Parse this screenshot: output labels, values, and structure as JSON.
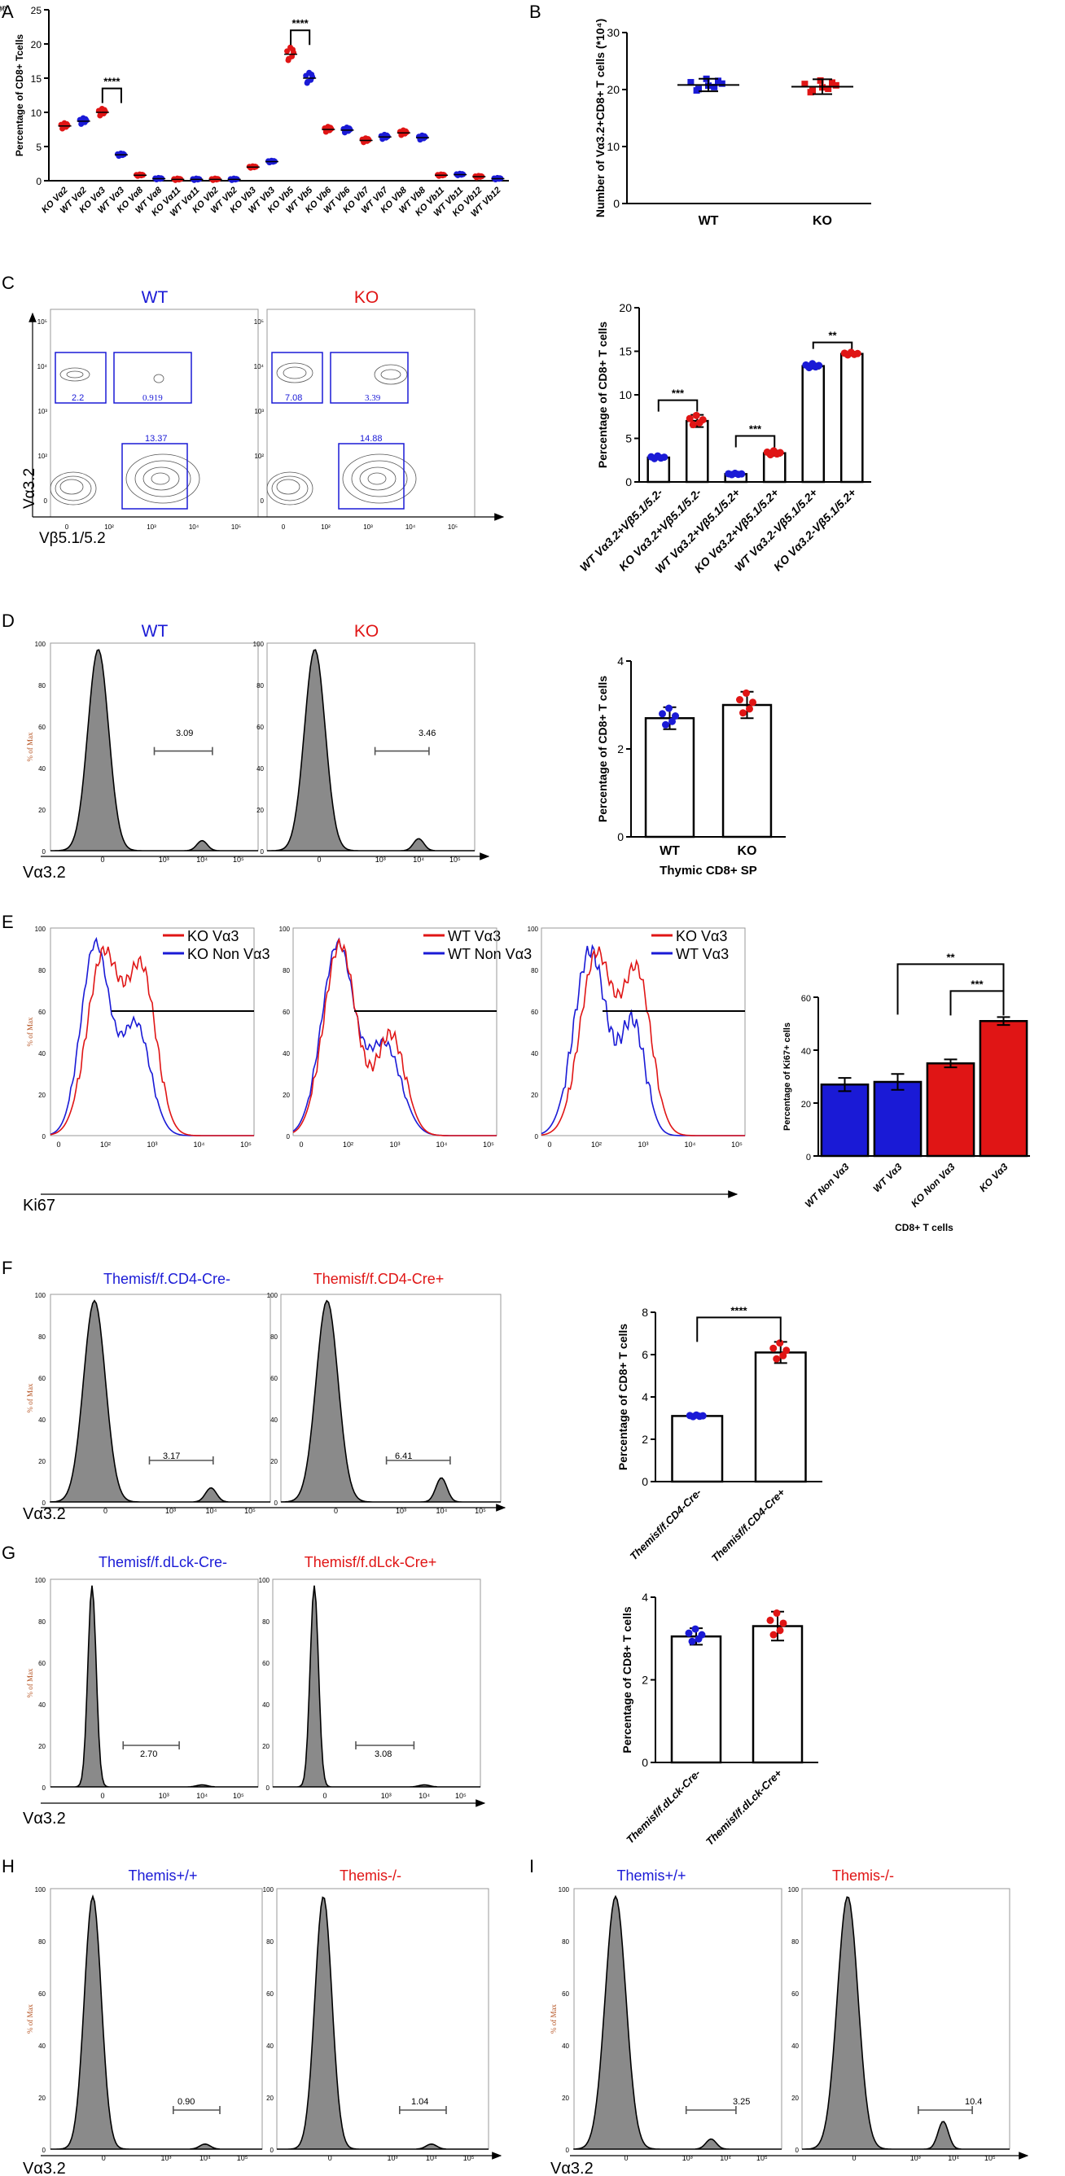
{
  "colors": {
    "wt": "#1a1ad6",
    "ko": "#e01515",
    "gray": "#808080",
    "black": "#000000"
  },
  "panels": {
    "A": {
      "letter": "A"
    },
    "B": {
      "letter": "B"
    },
    "C": {
      "letter": "C",
      "wt": "WT",
      "ko": "KO",
      "axis_y": "Vα3.2",
      "axis_x": "Vβ5.1/5.2",
      "wt_gates": [
        "2.2",
        "0.919",
        "13.37"
      ],
      "ko_gates": [
        "7.08",
        "3.39",
        "14.88"
      ]
    },
    "D": {
      "letter": "D",
      "wt": "WT",
      "ko": "KO",
      "axis_x": "Vα3.2",
      "wt_gate": "3.09",
      "ko_gate": "3.46"
    },
    "E": {
      "letter": "E",
      "axis_x": "Ki67",
      "legend1": [
        "KO Vα3",
        "KO Non Vα3"
      ],
      "legend2": [
        "WT Vα3",
        "WT Non Vα3"
      ],
      "legend3": [
        "KO Vα3",
        "WT Vα3"
      ]
    },
    "F": {
      "letter": "F",
      "title_wt": "Themisf/f.CD4-Cre-",
      "title_ko": "Themisf/f.CD4-Cre+",
      "axis_x": "Vα3.2",
      "wt_gate": "3.17",
      "ko_gate": "6.41"
    },
    "G": {
      "letter": "G",
      "title_wt": "Themisf/f.dLck-Cre-",
      "title_ko": "Themisf/f.dLck-Cre+",
      "axis_x": "Vα3.2",
      "wt_gate": "2.70",
      "ko_gate": "3.08"
    },
    "H": {
      "letter": "H",
      "title_wt": "Themis+/+",
      "title_ko": "Themis-/-",
      "axis_x": "Vα3.2",
      "wt_gate": "0.90",
      "ko_gate": "1.04"
    },
    "I": {
      "letter": "I",
      "title_wt": "Themis+/+",
      "title_ko": "Themis-/-",
      "axis_x": "Vα3.2",
      "wt_gate": "3.25",
      "ko_gate": "10.4"
    }
  },
  "flow_axis": {
    "pct_max_label": "% of Max",
    "y_ticks": [
      "100",
      "80",
      "60",
      "40",
      "20",
      "0"
    ],
    "x_ticks": [
      "0",
      "10³",
      "10⁴",
      "10⁵"
    ],
    "x_ticks_e": [
      "0",
      "10²",
      "10³",
      "10⁴",
      "10⁵"
    ],
    "c_y_ticks": [
      "10⁵",
      "10⁴",
      "10³",
      "10²",
      "0"
    ],
    "c_x_ticks": [
      "0",
      "10²",
      "10³",
      "10⁴",
      "10⁵"
    ]
  },
  "chart_data": [
    {
      "id": "A",
      "type": "scatter",
      "ylabel": "Percentage of CD8+ Tcells",
      "ylim": [
        0,
        25
      ],
      "yticks": [
        0,
        5,
        10,
        15,
        20,
        25
      ],
      "categories": [
        "KO Vα2",
        "WT Vα2",
        "KO Vα3",
        "WT Vα3",
        "KO Vα8",
        "WT Vα8",
        "KO Vα11",
        "WT Vα11",
        "KO Vb2",
        "WT Vb2",
        "KO Vb3",
        "WT Vb3",
        "KO Vb5",
        "WT Vb5",
        "KO Vb6",
        "WT Vb6",
        "KO Vb7",
        "WT Vb7",
        "KO Vb8",
        "WT Vb8",
        "KO Vb11",
        "WT Vb11",
        "KO Vb12",
        "WT Vb12"
      ],
      "means": [
        8.0,
        8.7,
        10.0,
        3.8,
        0.8,
        0.3,
        0.2,
        0.2,
        0.2,
        0.2,
        2.0,
        2.8,
        18.5,
        15.0,
        7.5,
        7.4,
        5.9,
        6.4,
        7.0,
        6.3,
        0.8,
        0.9,
        0.6,
        0.3
      ],
      "colors": [
        "ko",
        "wt",
        "ko",
        "wt",
        "ko",
        "wt",
        "ko",
        "wt",
        "ko",
        "wt",
        "ko",
        "wt",
        "ko",
        "wt",
        "ko",
        "wt",
        "ko",
        "wt",
        "ko",
        "wt",
        "ko",
        "wt",
        "ko",
        "wt"
      ],
      "significance": [
        {
          "pair": [
            2,
            3
          ],
          "label": "****"
        },
        {
          "pair": [
            12,
            13
          ],
          "label": "****"
        }
      ]
    },
    {
      "id": "B",
      "type": "scatter",
      "ylabel": "Number of Vα3.2+CD8+ T cells (*10⁴)",
      "ylim": [
        0,
        30
      ],
      "yticks": [
        0,
        10,
        20,
        30
      ],
      "categories": [
        "WT",
        "KO"
      ],
      "means": [
        20.8,
        20.5
      ],
      "sd": [
        1.1,
        1.3
      ],
      "colors": [
        "wt",
        "ko"
      ]
    },
    {
      "id": "C",
      "type": "bar",
      "ylabel": "Percentage of CD8+ T cells",
      "ylim": [
        0,
        20
      ],
      "yticks": [
        0,
        5,
        10,
        15,
        20
      ],
      "categories": [
        "WT Vα3.2+Vβ5.1/5.2-",
        "KO Vα3.2+Vβ5.1/5.2-",
        "WT Vα3.2+Vβ5.1/5.2+",
        "KO Vα3.2+Vβ5.1/5.2+",
        "WT Vα3.2-Vβ5.1/5.2+",
        "KO Vα3.2-Vβ5.1/5.2+"
      ],
      "values": [
        2.8,
        7.0,
        0.9,
        3.3,
        13.3,
        14.7
      ],
      "sd": [
        0.2,
        0.7,
        0.1,
        0.3,
        0.3,
        0.2
      ],
      "colors": [
        "wt",
        "ko",
        "wt",
        "ko",
        "wt",
        "ko"
      ],
      "significance": [
        {
          "pair": [
            0,
            1
          ],
          "label": "***"
        },
        {
          "pair": [
            2,
            3
          ],
          "label": "***"
        },
        {
          "pair": [
            4,
            5
          ],
          "label": "**"
        }
      ]
    },
    {
      "id": "D",
      "type": "bar",
      "ylabel": "Percentage of CD8+ T cells",
      "xlabel": "Thymic CD8+ SP",
      "ylim": [
        0,
        4
      ],
      "yticks": [
        0,
        2,
        4
      ],
      "categories": [
        "WT",
        "KO"
      ],
      "values": [
        2.7,
        3.0
      ],
      "sd": [
        0.25,
        0.3
      ],
      "colors": [
        "wt",
        "ko"
      ]
    },
    {
      "id": "E",
      "type": "bar",
      "ylabel": "Percentage of Ki67+ cells",
      "xlabel": "CD8+ T cells",
      "ylim": [
        0,
        60
      ],
      "yticks": [
        0,
        20,
        40,
        60
      ],
      "categories": [
        "WT Non Vα3",
        "WT Vα3",
        "KO Non Vα3",
        "KO Vα3"
      ],
      "values": [
        27,
        28,
        35,
        51
      ],
      "sd": [
        2.5,
        3,
        1.5,
        1.5
      ],
      "fills": [
        "wt",
        "wt",
        "ko",
        "ko"
      ],
      "significance": [
        {
          "pair": [
            1,
            3
          ],
          "label": "**"
        },
        {
          "pair": [
            2,
            3
          ],
          "label": "***"
        }
      ]
    },
    {
      "id": "F",
      "type": "bar",
      "ylabel": "Percentage of CD8+ T cells",
      "ylim": [
        0,
        8
      ],
      "yticks": [
        0,
        2,
        4,
        6,
        8
      ],
      "categories": [
        "Themisf/f.CD4-Cre-",
        "Themisf/f.CD4-Cre+"
      ],
      "values": [
        3.1,
        6.1
      ],
      "sd": [
        0.05,
        0.5
      ],
      "colors": [
        "wt",
        "ko"
      ],
      "significance": [
        {
          "pair": [
            0,
            1
          ],
          "label": "****"
        }
      ]
    },
    {
      "id": "G",
      "type": "bar",
      "ylabel": "Percentage of CD8+ T cells",
      "ylim": [
        0,
        4
      ],
      "yticks": [
        0,
        2,
        4
      ],
      "categories": [
        "Themisf/f.dLck-Cre-",
        "Themisf/f.dLck-Cre+"
      ],
      "values": [
        3.05,
        3.3
      ],
      "sd": [
        0.2,
        0.35
      ],
      "colors": [
        "wt",
        "ko"
      ]
    }
  ]
}
